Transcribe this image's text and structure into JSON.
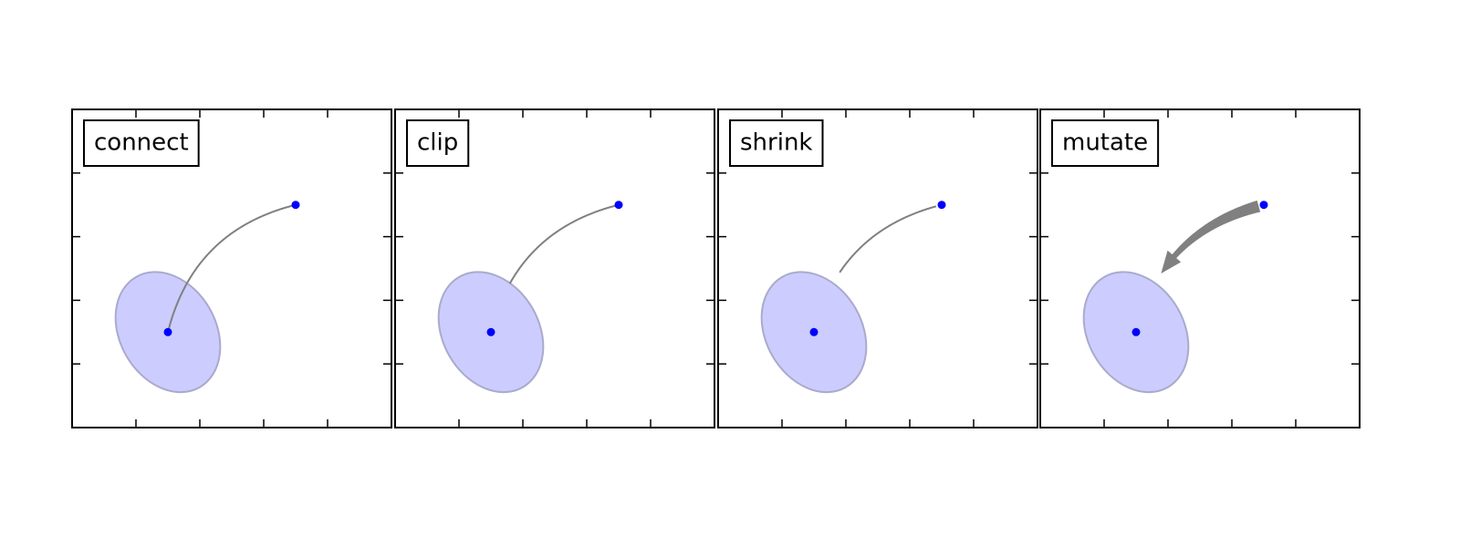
{
  "chart_data": [
    {
      "type": "scatter",
      "label": "connect",
      "x": [
        0.3,
        0.7
      ],
      "y": [
        0.3,
        0.7
      ],
      "color": "#0000ff",
      "xlim": [
        0,
        1
      ],
      "ylim": [
        0,
        1
      ],
      "xticks": [
        0.2,
        0.4,
        0.6,
        0.8
      ],
      "yticks": [
        0.2,
        0.4,
        0.6,
        0.8
      ],
      "ellipse": {
        "center": [
          0.3,
          0.3
        ],
        "width": 0.3,
        "height": 0.4,
        "angle": 30,
        "color": "#ccccff"
      },
      "arrow": {
        "rad": 0.3,
        "clip": false,
        "shrink": false,
        "style": "-",
        "color": "#808080"
      }
    },
    {
      "type": "scatter",
      "label": "clip",
      "x": [
        0.3,
        0.7
      ],
      "y": [
        0.3,
        0.7
      ],
      "color": "#0000ff",
      "xlim": [
        0,
        1
      ],
      "ylim": [
        0,
        1
      ],
      "xticks": [
        0.2,
        0.4,
        0.6,
        0.8
      ],
      "yticks": [
        0.2,
        0.4,
        0.6,
        0.8
      ],
      "ellipse": {
        "center": [
          0.3,
          0.3
        ],
        "width": 0.3,
        "height": 0.4,
        "angle": 30,
        "color": "#ccccff"
      },
      "arrow": {
        "rad": 0.3,
        "clip": true,
        "shrink": false,
        "style": "-",
        "color": "#808080"
      }
    },
    {
      "type": "scatter",
      "label": "shrink",
      "x": [
        0.3,
        0.7
      ],
      "y": [
        0.3,
        0.7
      ],
      "color": "#0000ff",
      "xlim": [
        0,
        1
      ],
      "ylim": [
        0,
        1
      ],
      "xticks": [
        0.2,
        0.4,
        0.6,
        0.8
      ],
      "yticks": [
        0.2,
        0.4,
        0.6,
        0.8
      ],
      "ellipse": {
        "center": [
          0.3,
          0.3
        ],
        "width": 0.3,
        "height": 0.4,
        "angle": 30,
        "color": "#ccccff"
      },
      "arrow": {
        "rad": 0.3,
        "clip": true,
        "shrink": true,
        "style": "-",
        "color": "#808080"
      }
    },
    {
      "type": "scatter",
      "label": "mutate",
      "x": [
        0.3,
        0.7
      ],
      "y": [
        0.3,
        0.7
      ],
      "color": "#0000ff",
      "xlim": [
        0,
        1
      ],
      "ylim": [
        0,
        1
      ],
      "xticks": [
        0.2,
        0.4,
        0.6,
        0.8
      ],
      "yticks": [
        0.2,
        0.4,
        0.6,
        0.8
      ],
      "ellipse": {
        "center": [
          0.3,
          0.3
        ],
        "width": 0.3,
        "height": 0.4,
        "angle": 30,
        "color": "#ccccff"
      },
      "arrow": {
        "rad": 0.3,
        "clip": true,
        "shrink": true,
        "style": "fancy",
        "color": "#808080"
      }
    }
  ]
}
